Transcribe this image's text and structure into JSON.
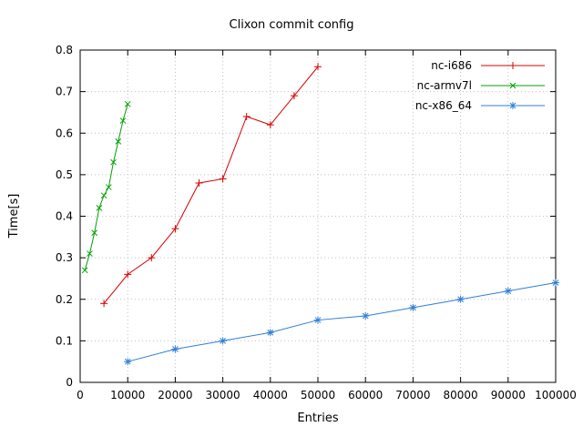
{
  "page": {
    "background": "#ffffff",
    "text_color": "#000000",
    "grid_color": "#c0c0c0"
  },
  "chart_data": {
    "type": "line",
    "title": "Clixon commit config",
    "xlabel": "Entries",
    "ylabel": "Time[s]",
    "xlim": [
      0,
      100000
    ],
    "ylim": [
      0,
      0.8
    ],
    "xticks": [
      0,
      10000,
      20000,
      30000,
      40000,
      50000,
      60000,
      70000,
      80000,
      90000,
      100000
    ],
    "yticks": [
      0,
      0.1,
      0.2,
      0.3,
      0.4,
      0.5,
      0.6,
      0.7,
      0.8
    ],
    "grid": true,
    "legend_position": "inside-top-right",
    "series": [
      {
        "name": "nc-i686",
        "color": "#d80000",
        "marker": "plus",
        "x": [
          5000,
          10000,
          15000,
          20000,
          25000,
          30000,
          35000,
          40000,
          45000,
          50000
        ],
        "y": [
          0.19,
          0.26,
          0.3,
          0.37,
          0.48,
          0.49,
          0.64,
          0.62,
          0.69,
          0.76
        ]
      },
      {
        "name": "nc-armv7l",
        "color": "#00a000",
        "marker": "x",
        "x": [
          1000,
          2000,
          3000,
          4000,
          5000,
          6000,
          7000,
          8000,
          9000,
          10000
        ],
        "y": [
          0.27,
          0.31,
          0.36,
          0.42,
          0.45,
          0.47,
          0.53,
          0.58,
          0.63,
          0.67
        ]
      },
      {
        "name": "nc-x86_64",
        "color": "#2f7ed8",
        "marker": "star",
        "x": [
          10000,
          20000,
          30000,
          40000,
          50000,
          60000,
          70000,
          80000,
          90000,
          100000
        ],
        "y": [
          0.05,
          0.08,
          0.1,
          0.12,
          0.15,
          0.16,
          0.18,
          0.2,
          0.22,
          0.24
        ]
      }
    ]
  }
}
